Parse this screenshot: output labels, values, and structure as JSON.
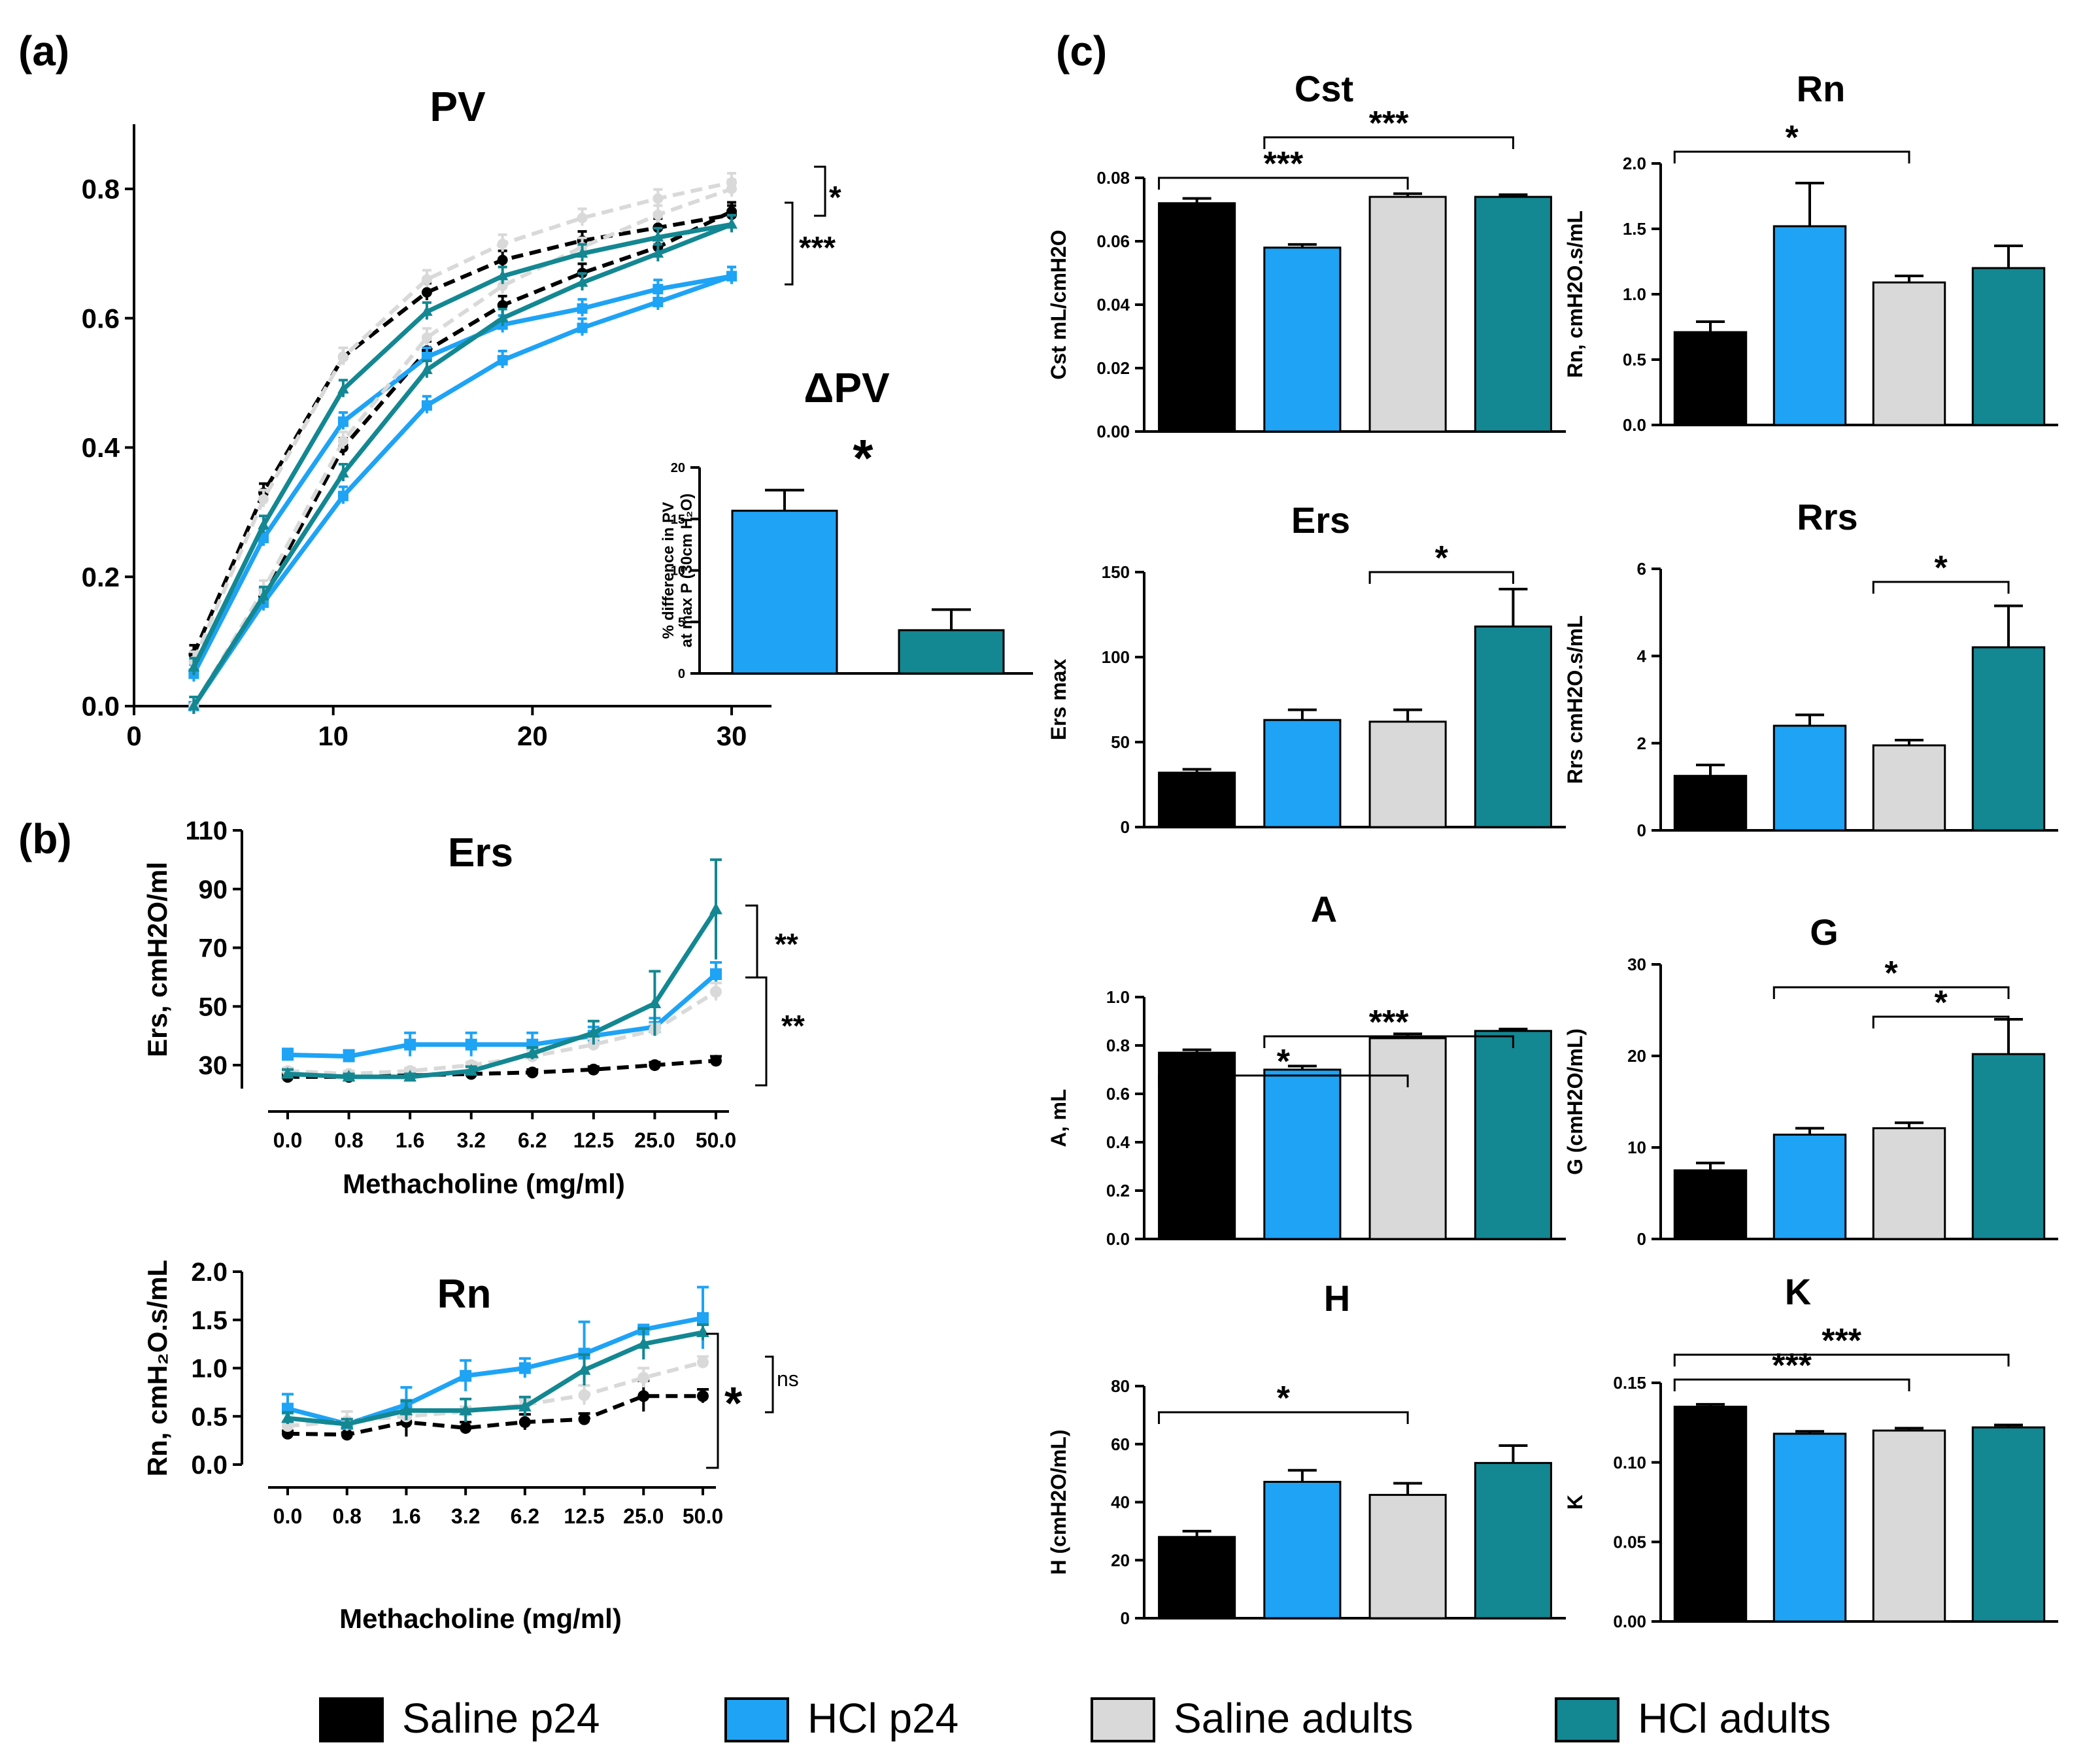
{
  "colors": {
    "saline_p24": "#000000",
    "hcl_p24": "#1ea3f5",
    "saline_adults": "#d9d9d9",
    "hcl_adults": "#138792"
  },
  "panel_labels": {
    "a": "(a)",
    "b": "(b)",
    "c": "(c)"
  },
  "legend": [
    {
      "label": "Saline p24",
      "key": "saline_p24"
    },
    {
      "label": "HCl p24",
      "key": "hcl_p24"
    },
    {
      "label": "Saline adults",
      "key": "saline_adults"
    },
    {
      "label": "HCl adults",
      "key": "hcl_adults"
    }
  ],
  "chart_data": [
    {
      "id": "pv",
      "type": "line",
      "title": "PV",
      "xlabel": "",
      "ylabel": "",
      "xlim": [
        0,
        32
      ],
      "ylim": [
        0,
        0.9
      ],
      "xticks": [
        0,
        10,
        20,
        30
      ],
      "yticks": [
        0.0,
        0.2,
        0.4,
        0.6,
        0.8
      ],
      "ytick_labels": [
        "0.0",
        "0.2",
        "0.4",
        "0.6",
        "0.8"
      ],
      "x": [
        3,
        6.5,
        10.5,
        14.7,
        18.5,
        22.5,
        26.3,
        30
      ],
      "series": [
        {
          "name": "Saline p24 inflation",
          "group": "saline_p24",
          "dashed": true,
          "values": [
            0.0,
            0.17,
            0.4,
            0.55,
            0.62,
            0.67,
            0.71,
            0.765
          ]
        },
        {
          "name": "Saline p24 deflation",
          "group": "saline_p24",
          "dashed": true,
          "values": [
            0.08,
            0.33,
            0.54,
            0.64,
            0.69,
            0.72,
            0.74,
            0.76
          ]
        },
        {
          "name": "HCl p24 inflation",
          "group": "hcl_p24",
          "dashed": false,
          "values": [
            0.0,
            0.16,
            0.325,
            0.465,
            0.535,
            0.585,
            0.625,
            0.665
          ]
        },
        {
          "name": "HCl p24 deflation",
          "group": "hcl_p24",
          "dashed": false,
          "values": [
            0.05,
            0.26,
            0.44,
            0.54,
            0.59,
            0.615,
            0.645,
            0.665
          ]
        },
        {
          "name": "Saline adults inflation",
          "group": "saline_adults",
          "dashed": true,
          "values": [
            0.0,
            0.18,
            0.41,
            0.57,
            0.65,
            0.71,
            0.76,
            0.8
          ]
        },
        {
          "name": "Saline adults deflation",
          "group": "saline_adults",
          "dashed": true,
          "values": [
            0.07,
            0.32,
            0.54,
            0.66,
            0.715,
            0.755,
            0.785,
            0.81
          ]
        },
        {
          "name": "HCl adults inflation",
          "group": "hcl_adults",
          "dashed": false,
          "values": [
            0.0,
            0.17,
            0.36,
            0.52,
            0.6,
            0.655,
            0.7,
            0.745
          ]
        },
        {
          "name": "HCl adults deflation",
          "group": "hcl_adults",
          "dashed": false,
          "values": [
            0.06,
            0.28,
            0.49,
            0.61,
            0.665,
            0.7,
            0.725,
            0.745
          ]
        }
      ],
      "annotations": [
        "*",
        "***"
      ]
    },
    {
      "id": "dpv",
      "type": "bar",
      "title": "ΔPV",
      "significance": "*",
      "ylabel_lines": [
        "% difference in PV",
        "at max P (30cm H₂O)"
      ],
      "ylim": [
        0,
        20
      ],
      "yticks": [
        0,
        5,
        10,
        15,
        20
      ],
      "ytick_labels": [
        "0",
        "5",
        "10",
        "15",
        "20"
      ],
      "categories": [
        "HCl p24",
        "HCl adults"
      ],
      "values": [
        15.8,
        4.2
      ],
      "errors": [
        2.0,
        2.0
      ],
      "colors": [
        "hcl_p24",
        "hcl_adults"
      ]
    },
    {
      "id": "ers_mch",
      "type": "line",
      "title": "Ers",
      "xlabel": "Methacholine (mg/ml)",
      "ylabel": "Ers, cmH2O/ml",
      "ylim": [
        22,
        110
      ],
      "yticks": [
        30,
        50,
        70,
        90,
        110
      ],
      "ytick_labels": [
        "30",
        "50",
        "70",
        "90",
        "110"
      ],
      "categories": [
        "0.0",
        "0.8",
        "1.6",
        "3.2",
        "6.2",
        "12.5",
        "25.0",
        "50.0"
      ],
      "series": [
        {
          "name": "Saline p24",
          "group": "saline_p24",
          "dashed": true,
          "values": [
            26,
            26,
            26.5,
            27,
            27.5,
            28.5,
            30,
            31.5
          ],
          "errors": [
            1,
            1,
            1,
            1,
            1,
            1,
            1,
            1.5
          ]
        },
        {
          "name": "HCl p24",
          "group": "hcl_p24",
          "dashed": false,
          "values": [
            33.5,
            33,
            37,
            37,
            37,
            40,
            43,
            61
          ],
          "errors": [
            2,
            2,
            4,
            4,
            4,
            3,
            3,
            4
          ]
        },
        {
          "name": "Saline adults",
          "group": "saline_adults",
          "dashed": true,
          "values": [
            28,
            27,
            28,
            30,
            33,
            37,
            42,
            55
          ],
          "errors": [
            1,
            1,
            1,
            1,
            2,
            2,
            2,
            3
          ]
        },
        {
          "name": "HCl adults",
          "group": "hcl_adults",
          "dashed": false,
          "values": [
            27,
            26,
            26,
            28,
            34,
            41,
            51,
            83
          ],
          "errors": [
            1.5,
            1,
            1,
            1.5,
            2,
            4,
            11,
            17
          ]
        }
      ],
      "annotations": [
        "**",
        "**"
      ]
    },
    {
      "id": "rn_mch",
      "type": "line",
      "title": "Rn",
      "xlabel": "Methacholine (mg/ml)",
      "ylabel": "Rn, cmH₂O.s/mL",
      "ylim": [
        0,
        2.0
      ],
      "yticks": [
        0.0,
        0.5,
        1.0,
        1.5,
        2.0
      ],
      "ytick_labels": [
        "0.0",
        "0.5",
        "1.0",
        "1.5",
        "2.0"
      ],
      "categories": [
        "0.0",
        "0.8",
        "1.6",
        "3.2",
        "6.2",
        "12.5",
        "25.0",
        "50.0"
      ],
      "series": [
        {
          "name": "Saline p24",
          "group": "saline_p24",
          "dashed": true,
          "values": [
            0.32,
            0.31,
            0.44,
            0.38,
            0.44,
            0.47,
            0.71,
            0.71
          ],
          "errors": [
            0.03,
            0.02,
            0.15,
            0.06,
            0.08,
            0.06,
            0.16,
            0.07
          ]
        },
        {
          "name": "HCl p24",
          "group": "hcl_p24",
          "dashed": false,
          "values": [
            0.58,
            0.42,
            0.62,
            0.92,
            1.0,
            1.15,
            1.4,
            1.52
          ],
          "errors": [
            0.15,
            0.05,
            0.18,
            0.16,
            0.1,
            0.33,
            0.03,
            0.32
          ]
        },
        {
          "name": "Saline adults",
          "group": "saline_adults",
          "dashed": true,
          "values": [
            0.4,
            0.45,
            0.5,
            0.55,
            0.62,
            0.72,
            0.9,
            1.06
          ],
          "errors": [
            0.05,
            0.1,
            0.05,
            0.05,
            0.05,
            0.1,
            0.1,
            0.06
          ]
        },
        {
          "name": "HCl adults",
          "group": "hcl_adults",
          "dashed": false,
          "values": [
            0.48,
            0.42,
            0.56,
            0.56,
            0.6,
            0.98,
            1.25,
            1.37
          ],
          "errors": [
            0.06,
            0.05,
            0.1,
            0.12,
            0.1,
            0.16,
            0.16,
            0.08
          ]
        }
      ],
      "annotations": [
        "*",
        "ns"
      ]
    },
    {
      "id": "cst",
      "type": "bar",
      "title": "Cst",
      "ylabel": "Cst mL/cmH2O",
      "ylim": [
        0,
        0.08
      ],
      "yticks": [
        0,
        0.02,
        0.04,
        0.06,
        0.08
      ],
      "ytick_labels": [
        "0.00",
        "0.02",
        "0.04",
        "0.06",
        "0.08"
      ],
      "values": [
        0.072,
        0.058,
        0.074,
        0.074
      ],
      "errors": [
        0.0015,
        0.001,
        0.001,
        0.0007
      ],
      "significance": [
        "***",
        "***"
      ]
    },
    {
      "id": "rn",
      "type": "bar",
      "title": "Rn",
      "ylabel": "Rn, cmH2O.s/mL",
      "ylim": [
        0,
        2.0
      ],
      "yticks": [
        0,
        0.5,
        1.0,
        1.5,
        2.0
      ],
      "ytick_labels": [
        "0.0",
        "0.5",
        "1.0",
        "1.5",
        "2.0"
      ],
      "values": [
        0.71,
        1.52,
        1.09,
        1.2
      ],
      "errors": [
        0.08,
        0.33,
        0.05,
        0.17
      ],
      "significance": [
        "*"
      ]
    },
    {
      "id": "ers",
      "type": "bar",
      "title": "Ers",
      "ylabel": "Ers max",
      "ylim": [
        0,
        150
      ],
      "yticks": [
        0,
        50,
        100,
        150
      ],
      "ytick_labels": [
        "0",
        "50",
        "100",
        "150"
      ],
      "values": [
        32,
        63,
        62,
        118
      ],
      "errors": [
        2,
        6,
        7,
        22
      ],
      "significance": [
        "*"
      ]
    },
    {
      "id": "rrs",
      "type": "bar",
      "title": "Rrs",
      "ylabel": "Rrs cmH2O.s/mL",
      "ylim": [
        0,
        6
      ],
      "yticks": [
        0,
        2,
        4,
        6
      ],
      "ytick_labels": [
        "0",
        "2",
        "4",
        "6"
      ],
      "values": [
        1.25,
        2.4,
        1.95,
        4.2
      ],
      "errors": [
        0.25,
        0.25,
        0.12,
        0.95
      ],
      "significance": [
        "*"
      ]
    },
    {
      "id": "a",
      "type": "bar",
      "title": "A",
      "ylabel": "A, mL",
      "ylim": [
        0,
        1.0
      ],
      "yticks": [
        0,
        0.2,
        0.4,
        0.6,
        0.8,
        1.0
      ],
      "ytick_labels": [
        "0.0",
        "0.2",
        "0.4",
        "0.6",
        "0.8",
        "1.0"
      ],
      "values": [
        0.77,
        0.7,
        0.83,
        0.86
      ],
      "errors": [
        0.012,
        0.015,
        0.018,
        0.008
      ],
      "significance": [
        "*",
        "***"
      ]
    },
    {
      "id": "g",
      "type": "bar",
      "title": "G",
      "ylabel": "G (cmH2O/mL)",
      "ylim": [
        0,
        30
      ],
      "yticks": [
        0,
        10,
        20,
        30
      ],
      "ytick_labels": [
        "0",
        "10",
        "20",
        "30"
      ],
      "values": [
        7.5,
        11.4,
        12.1,
        20.2
      ],
      "errors": [
        0.8,
        0.7,
        0.6,
        3.8
      ],
      "significance": [
        "*",
        "*"
      ]
    },
    {
      "id": "h",
      "type": "bar",
      "title": "H",
      "ylabel": "H (cmH2O/mL)",
      "ylim": [
        0,
        80
      ],
      "yticks": [
        0,
        20,
        40,
        60,
        80
      ],
      "ytick_labels": [
        "0",
        "20",
        "40",
        "60",
        "80"
      ],
      "values": [
        28,
        47,
        42.5,
        53.5
      ],
      "errors": [
        2,
        4,
        4,
        6
      ],
      "significance": [
        "*"
      ]
    },
    {
      "id": "k",
      "type": "bar",
      "title": "K",
      "ylabel": "K",
      "ylim": [
        0,
        0.15
      ],
      "yticks": [
        0,
        0.05,
        0.1,
        0.15
      ],
      "ytick_labels": [
        "0.00",
        "0.05",
        "0.10",
        "0.15"
      ],
      "values": [
        0.135,
        0.118,
        0.12,
        0.122
      ],
      "errors": [
        0.0015,
        0.0015,
        0.0015,
        0.0015
      ],
      "significance": [
        "***",
        "***"
      ]
    }
  ]
}
